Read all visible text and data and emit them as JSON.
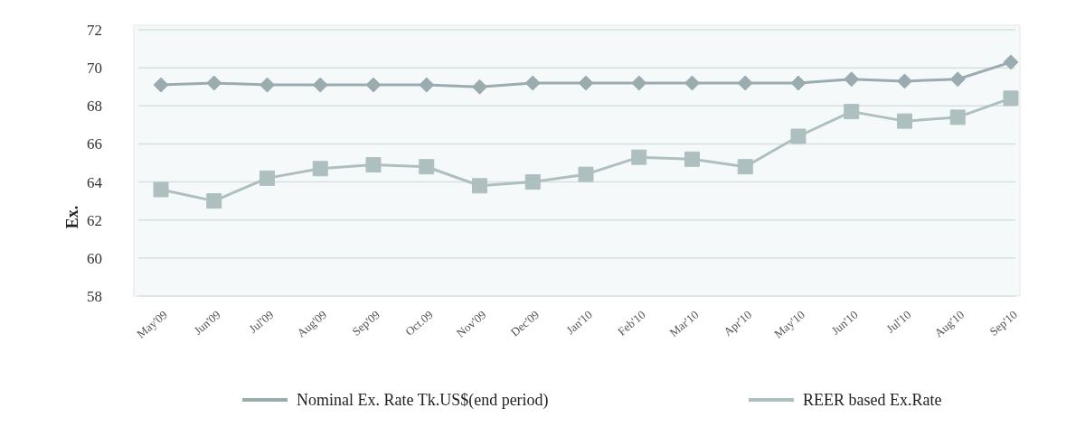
{
  "chart_data": {
    "type": "line",
    "ylabel": "Ex.",
    "categories": [
      "May'09",
      "Jun'09",
      "Jul'09",
      "Aug'09",
      "Sep'09",
      "Oct.09",
      "Nov'09",
      "Dec'09",
      "Jan'10",
      "Feb'10",
      "Mar'10",
      "Apr'10",
      "May'10",
      "Jun'10",
      "Jul'10",
      "Aug'10",
      "Sep'10"
    ],
    "series": [
      {
        "name": "Nominal Ex. Rate Tk.US$(end period)",
        "color": "#9aacaf",
        "marker": "diamond",
        "values": [
          69.1,
          69.2,
          69.1,
          69.1,
          69.1,
          69.1,
          69.0,
          69.2,
          69.2,
          69.2,
          69.2,
          69.2,
          69.2,
          69.4,
          69.3,
          69.4,
          70.3
        ]
      },
      {
        "name": "REER based Ex.Rate",
        "color": "#aebfc0",
        "marker": "square",
        "values": [
          63.6,
          63.0,
          64.2,
          64.7,
          64.9,
          64.8,
          63.8,
          64.0,
          64.4,
          65.3,
          65.2,
          64.8,
          66.4,
          67.7,
          67.2,
          67.4,
          68.4
        ]
      }
    ],
    "ylim": [
      58,
      72
    ],
    "yticks": [
      58,
      60,
      62,
      64,
      66,
      68,
      70,
      72
    ],
    "grid": "y",
    "legend": "bottom",
    "line_style": "solid"
  }
}
